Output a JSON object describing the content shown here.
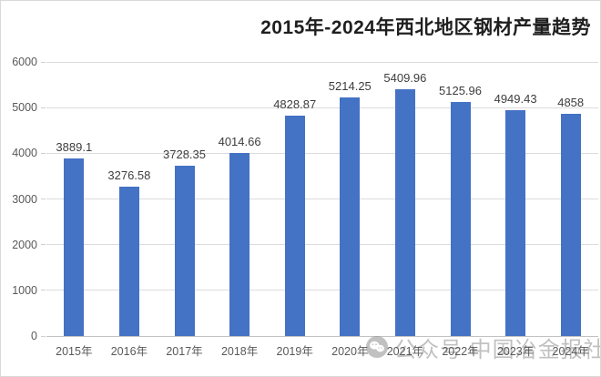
{
  "chart_data": {
    "type": "bar",
    "title": "2015年-2024年西北地区钢材产量趋势",
    "categories": [
      "2015年",
      "2016年",
      "2017年",
      "2018年",
      "2019年",
      "2020年",
      "2021年",
      "2022年",
      "2023年",
      "2024年"
    ],
    "values": [
      3889.1,
      3276.58,
      3728.35,
      4014.66,
      4828.87,
      5214.25,
      5409.96,
      5125.96,
      4949.43,
      4858
    ],
    "value_labels": [
      "3889.1",
      "3276.58",
      "3728.35",
      "4014.66",
      "4828.87",
      "5214.25",
      "5409.96",
      "5125.96",
      "4949.43",
      "4858"
    ],
    "xlabel": "",
    "ylabel": "",
    "ylim": [
      0,
      6000
    ],
    "ytick_interval": 1000,
    "ytick_labels": [
      "0",
      "1000",
      "2000",
      "3000",
      "4000",
      "5000",
      "6000"
    ],
    "grid": true,
    "legend_position": "none",
    "bar_color": "#4472C4",
    "gridline_color": "#dcdcdc",
    "axis_label_color": "#595959",
    "value_label_color": "#3d3d3d",
    "title_color": "#1f1f1f"
  },
  "watermark": {
    "icon": "wechat-icon",
    "text": "公众号 中国冶金报社",
    "color": "#8f8f8f"
  }
}
